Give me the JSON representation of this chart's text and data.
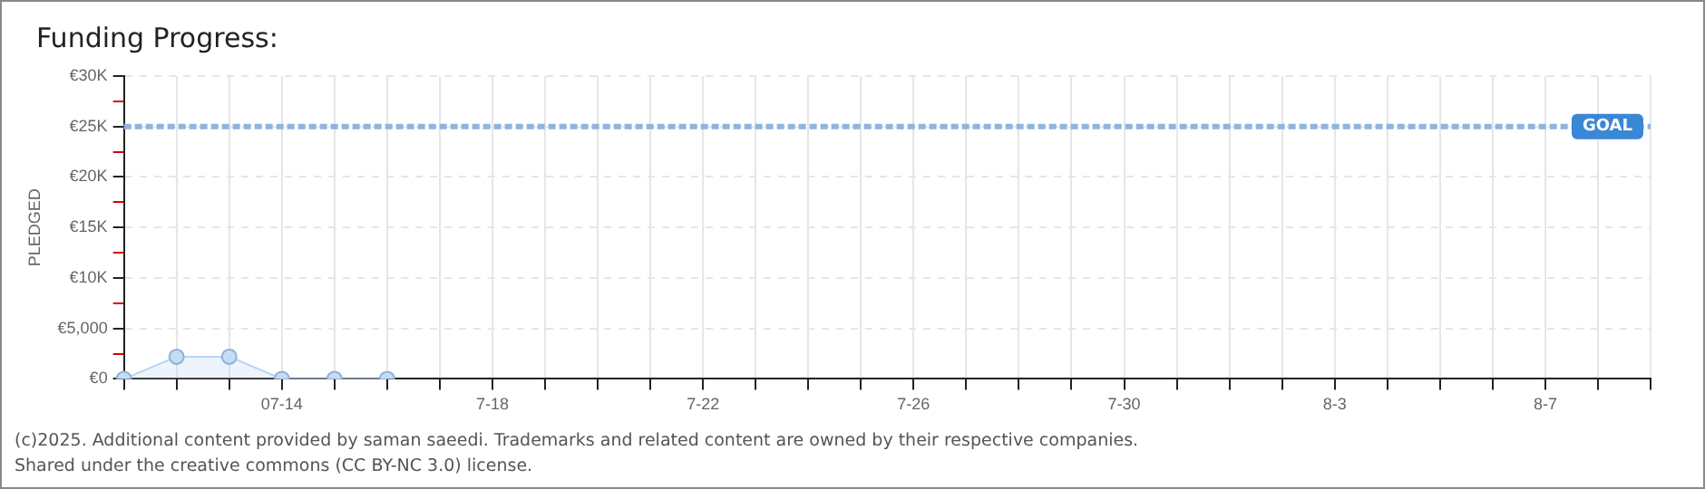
{
  "chart_data": {
    "type": "area",
    "title": "Funding Progress:",
    "ylabel": "PLEDGED",
    "categories": [
      null,
      null,
      null,
      "07-14",
      null,
      null,
      null,
      "7-18",
      null,
      null,
      null,
      "7-22",
      null,
      null,
      null,
      "7-26",
      null,
      null,
      null,
      "7-30",
      null,
      null,
      null,
      "8-3",
      null,
      null,
      null,
      "8-7",
      null,
      null
    ],
    "series": [
      {
        "color": "#b8d4f2",
        "values": [
          0,
          2200,
          2200,
          0,
          0,
          0,
          null,
          null,
          null,
          null,
          null,
          null,
          null,
          null,
          null,
          null,
          null,
          null,
          null,
          null,
          null,
          null,
          null,
          null,
          null,
          null,
          null,
          null,
          null,
          null
        ]
      }
    ],
    "ylim": [
      0,
      30000
    ],
    "yticks": [
      {
        "value": 0,
        "label": "€0"
      },
      {
        "value": 2500,
        "label": null
      },
      {
        "value": 5000,
        "label": "€5,000"
      },
      {
        "value": 7500,
        "label": null
      },
      {
        "value": 10000,
        "label": "€10K"
      },
      {
        "value": 12500,
        "label": null
      },
      {
        "value": 15000,
        "label": "€15K"
      },
      {
        "value": 17500,
        "label": null
      },
      {
        "value": 20000,
        "label": "€20K"
      },
      {
        "value": 22500,
        "label": null
      },
      {
        "value": 25000,
        "label": "€25K"
      },
      {
        "value": 27500,
        "label": null
      },
      {
        "value": 30000,
        "label": "€30K"
      }
    ],
    "ref_lines": [
      {
        "axis": "y",
        "value": 25000,
        "label": "GOAL",
        "color": "#8fb4e0",
        "line_style": "dashed"
      }
    ],
    "grid": true,
    "legend": false,
    "marker": "circle",
    "line_style": "solid",
    "annotations": [
      "(c)2025. Additional content provided by saman saeedi. Trademarks and related content are owned by their respective companies.",
      "Shared under the creative commons (CC BY-NC 3.0) license."
    ]
  }
}
